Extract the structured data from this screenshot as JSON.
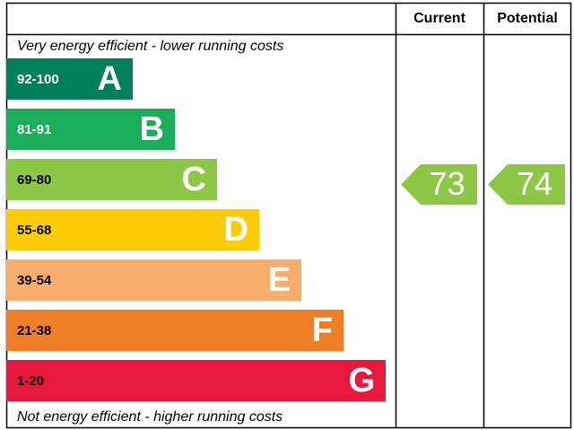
{
  "header": {
    "current": "Current",
    "potential": "Potential"
  },
  "top_note": "Very energy efficient - lower running costs",
  "bottom_note": "Not energy efficient - higher running costs",
  "bands": [
    {
      "range": "92-100",
      "letter": "A",
      "color": "#00805a"
    },
    {
      "range": "81-91",
      "letter": "B",
      "color": "#1aae5b"
    },
    {
      "range": "69-80",
      "letter": "C",
      "color": "#8cc845"
    },
    {
      "range": "55-68",
      "letter": "D",
      "color": "#fecc07"
    },
    {
      "range": "39-54",
      "letter": "E",
      "color": "#f8ae6a"
    },
    {
      "range": "21-38",
      "letter": "F",
      "color": "#ef7f26"
    },
    {
      "range": "1-20",
      "letter": "G",
      "color": "#e7183c"
    }
  ],
  "current": {
    "value": 73,
    "color": "#8cc845"
  },
  "potential": {
    "value": 74,
    "color": "#8cc845"
  }
}
